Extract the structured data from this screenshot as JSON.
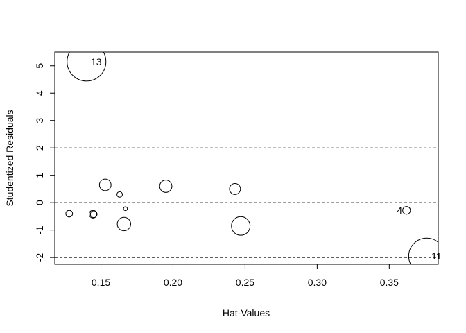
{
  "chart_data": {
    "type": "scatter",
    "title": "",
    "xlabel": "Hat-Values",
    "ylabel": "Studentized Residuals",
    "xlim": [
      0.118,
      0.384
    ],
    "ylim": [
      -2.25,
      5.5
    ],
    "xticks": [
      {
        "value": 0.15,
        "label": "0.15"
      },
      {
        "value": 0.2,
        "label": "0.20"
      },
      {
        "value": 0.25,
        "label": "0.25"
      },
      {
        "value": 0.3,
        "label": "0.30"
      },
      {
        "value": 0.35,
        "label": "0.35"
      }
    ],
    "yticks": [
      {
        "value": -2,
        "label": "-2"
      },
      {
        "value": -1,
        "label": "-1"
      },
      {
        "value": 0,
        "label": "0"
      },
      {
        "value": 1,
        "label": "1"
      },
      {
        "value": 2,
        "label": "2"
      },
      {
        "value": 3,
        "label": "3"
      },
      {
        "value": 4,
        "label": "4"
      },
      {
        "value": 5,
        "label": "5"
      }
    ],
    "reference_lines_y": [
      -2,
      0,
      2
    ],
    "grid": false,
    "point_size_encoding": "Cook's distance (bubble area)",
    "points": [
      {
        "x": 0.14,
        "y": 5.15,
        "size": 1.0,
        "label": "13"
      },
      {
        "x": 0.128,
        "y": -0.4,
        "size": 0.03,
        "label": ""
      },
      {
        "x": 0.1445,
        "y": -0.42,
        "size": 0.04,
        "label": ""
      },
      {
        "x": 0.145,
        "y": -0.42,
        "size": 0.03,
        "label": ""
      },
      {
        "x": 0.153,
        "y": 0.65,
        "size": 0.09,
        "label": ""
      },
      {
        "x": 0.163,
        "y": 0.3,
        "size": 0.02,
        "label": ""
      },
      {
        "x": 0.166,
        "y": -0.78,
        "size": 0.12,
        "label": ""
      },
      {
        "x": 0.167,
        "y": -0.22,
        "size": 0.01,
        "label": ""
      },
      {
        "x": 0.195,
        "y": 0.6,
        "size": 0.1,
        "label": ""
      },
      {
        "x": 0.243,
        "y": 0.5,
        "size": 0.08,
        "label": ""
      },
      {
        "x": 0.247,
        "y": -0.85,
        "size": 0.23,
        "label": ""
      },
      {
        "x": 0.362,
        "y": -0.28,
        "size": 0.04,
        "label": "4"
      },
      {
        "x": 0.376,
        "y": -1.95,
        "size": 0.86,
        "label": "11"
      }
    ]
  }
}
